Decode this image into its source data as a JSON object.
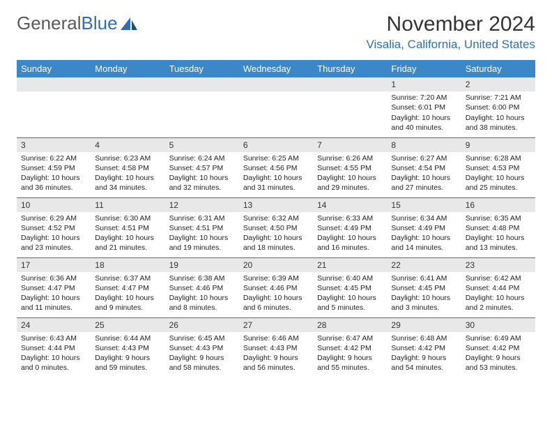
{
  "logo": {
    "text1": "General",
    "text2": "Blue"
  },
  "title": "November 2024",
  "location": "Visalia, California, United States",
  "dayHeaders": [
    "Sunday",
    "Monday",
    "Tuesday",
    "Wednesday",
    "Thursday",
    "Friday",
    "Saturday"
  ],
  "colors": {
    "headerBg": "#3b87c8",
    "headerText": "#ffffff",
    "dayNumBg": "#e8e8e8",
    "accent": "#2f6fb3",
    "rowBorder": "#3b6fa5"
  },
  "weeks": [
    [
      {
        "n": "",
        "empty": true
      },
      {
        "n": "",
        "empty": true
      },
      {
        "n": "",
        "empty": true
      },
      {
        "n": "",
        "empty": true
      },
      {
        "n": "",
        "empty": true
      },
      {
        "n": "1",
        "sr": "Sunrise: 7:20 AM",
        "ss": "Sunset: 6:01 PM",
        "dl": "Daylight: 10 hours and 40 minutes."
      },
      {
        "n": "2",
        "sr": "Sunrise: 7:21 AM",
        "ss": "Sunset: 6:00 PM",
        "dl": "Daylight: 10 hours and 38 minutes."
      }
    ],
    [
      {
        "n": "3",
        "sr": "Sunrise: 6:22 AM",
        "ss": "Sunset: 4:59 PM",
        "dl": "Daylight: 10 hours and 36 minutes."
      },
      {
        "n": "4",
        "sr": "Sunrise: 6:23 AM",
        "ss": "Sunset: 4:58 PM",
        "dl": "Daylight: 10 hours and 34 minutes."
      },
      {
        "n": "5",
        "sr": "Sunrise: 6:24 AM",
        "ss": "Sunset: 4:57 PM",
        "dl": "Daylight: 10 hours and 32 minutes."
      },
      {
        "n": "6",
        "sr": "Sunrise: 6:25 AM",
        "ss": "Sunset: 4:56 PM",
        "dl": "Daylight: 10 hours and 31 minutes."
      },
      {
        "n": "7",
        "sr": "Sunrise: 6:26 AM",
        "ss": "Sunset: 4:55 PM",
        "dl": "Daylight: 10 hours and 29 minutes."
      },
      {
        "n": "8",
        "sr": "Sunrise: 6:27 AM",
        "ss": "Sunset: 4:54 PM",
        "dl": "Daylight: 10 hours and 27 minutes."
      },
      {
        "n": "9",
        "sr": "Sunrise: 6:28 AM",
        "ss": "Sunset: 4:53 PM",
        "dl": "Daylight: 10 hours and 25 minutes."
      }
    ],
    [
      {
        "n": "10",
        "sr": "Sunrise: 6:29 AM",
        "ss": "Sunset: 4:52 PM",
        "dl": "Daylight: 10 hours and 23 minutes."
      },
      {
        "n": "11",
        "sr": "Sunrise: 6:30 AM",
        "ss": "Sunset: 4:51 PM",
        "dl": "Daylight: 10 hours and 21 minutes."
      },
      {
        "n": "12",
        "sr": "Sunrise: 6:31 AM",
        "ss": "Sunset: 4:51 PM",
        "dl": "Daylight: 10 hours and 19 minutes."
      },
      {
        "n": "13",
        "sr": "Sunrise: 6:32 AM",
        "ss": "Sunset: 4:50 PM",
        "dl": "Daylight: 10 hours and 18 minutes."
      },
      {
        "n": "14",
        "sr": "Sunrise: 6:33 AM",
        "ss": "Sunset: 4:49 PM",
        "dl": "Daylight: 10 hours and 16 minutes."
      },
      {
        "n": "15",
        "sr": "Sunrise: 6:34 AM",
        "ss": "Sunset: 4:49 PM",
        "dl": "Daylight: 10 hours and 14 minutes."
      },
      {
        "n": "16",
        "sr": "Sunrise: 6:35 AM",
        "ss": "Sunset: 4:48 PM",
        "dl": "Daylight: 10 hours and 13 minutes."
      }
    ],
    [
      {
        "n": "17",
        "sr": "Sunrise: 6:36 AM",
        "ss": "Sunset: 4:47 PM",
        "dl": "Daylight: 10 hours and 11 minutes."
      },
      {
        "n": "18",
        "sr": "Sunrise: 6:37 AM",
        "ss": "Sunset: 4:47 PM",
        "dl": "Daylight: 10 hours and 9 minutes."
      },
      {
        "n": "19",
        "sr": "Sunrise: 6:38 AM",
        "ss": "Sunset: 4:46 PM",
        "dl": "Daylight: 10 hours and 8 minutes."
      },
      {
        "n": "20",
        "sr": "Sunrise: 6:39 AM",
        "ss": "Sunset: 4:46 PM",
        "dl": "Daylight: 10 hours and 6 minutes."
      },
      {
        "n": "21",
        "sr": "Sunrise: 6:40 AM",
        "ss": "Sunset: 4:45 PM",
        "dl": "Daylight: 10 hours and 5 minutes."
      },
      {
        "n": "22",
        "sr": "Sunrise: 6:41 AM",
        "ss": "Sunset: 4:45 PM",
        "dl": "Daylight: 10 hours and 3 minutes."
      },
      {
        "n": "23",
        "sr": "Sunrise: 6:42 AM",
        "ss": "Sunset: 4:44 PM",
        "dl": "Daylight: 10 hours and 2 minutes."
      }
    ],
    [
      {
        "n": "24",
        "sr": "Sunrise: 6:43 AM",
        "ss": "Sunset: 4:44 PM",
        "dl": "Daylight: 10 hours and 0 minutes."
      },
      {
        "n": "25",
        "sr": "Sunrise: 6:44 AM",
        "ss": "Sunset: 4:43 PM",
        "dl": "Daylight: 9 hours and 59 minutes."
      },
      {
        "n": "26",
        "sr": "Sunrise: 6:45 AM",
        "ss": "Sunset: 4:43 PM",
        "dl": "Daylight: 9 hours and 58 minutes."
      },
      {
        "n": "27",
        "sr": "Sunrise: 6:46 AM",
        "ss": "Sunset: 4:43 PM",
        "dl": "Daylight: 9 hours and 56 minutes."
      },
      {
        "n": "28",
        "sr": "Sunrise: 6:47 AM",
        "ss": "Sunset: 4:42 PM",
        "dl": "Daylight: 9 hours and 55 minutes."
      },
      {
        "n": "29",
        "sr": "Sunrise: 6:48 AM",
        "ss": "Sunset: 4:42 PM",
        "dl": "Daylight: 9 hours and 54 minutes."
      },
      {
        "n": "30",
        "sr": "Sunrise: 6:49 AM",
        "ss": "Sunset: 4:42 PM",
        "dl": "Daylight: 9 hours and 53 minutes."
      }
    ]
  ]
}
